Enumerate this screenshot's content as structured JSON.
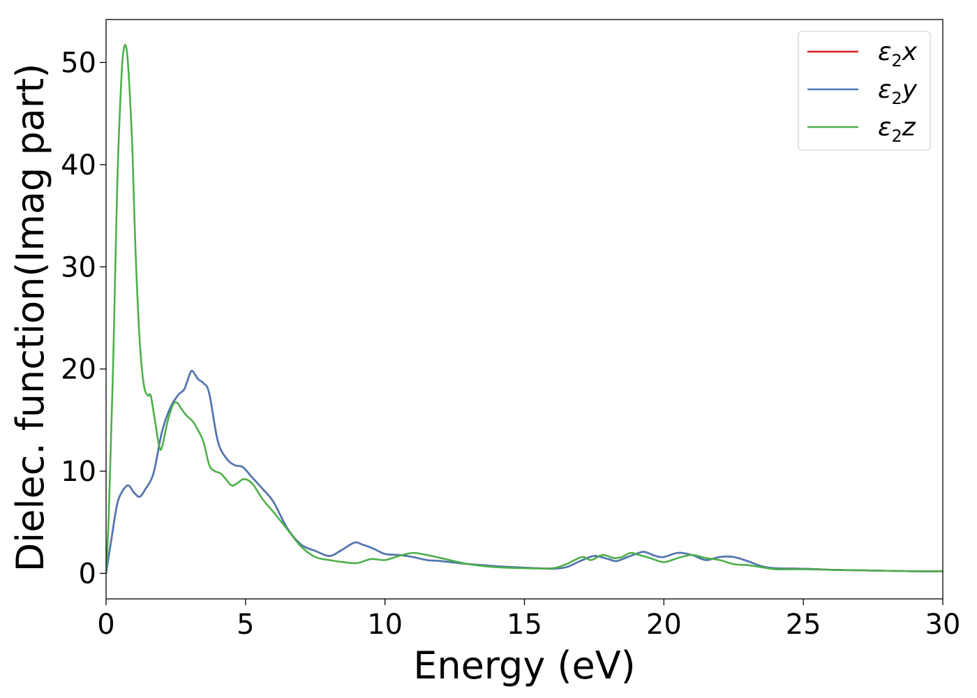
{
  "chart_data": {
    "type": "line",
    "title": "",
    "xlabel": "Energy (eV)",
    "ylabel": "Dielec. function(Imag part)",
    "xlim": [
      0,
      30
    ],
    "ylim": [
      -2.5,
      54.2
    ],
    "xticks": [
      0,
      5,
      10,
      15,
      20,
      25,
      30
    ],
    "yticks": [
      0,
      10,
      20,
      30,
      40,
      50
    ],
    "grid": false,
    "legend_position": "top-right",
    "series": [
      {
        "name": "ε₂x",
        "legend_base": "ε",
        "legend_sub": "2",
        "legend_suffix": "x",
        "color": "#e41a1c",
        "x": [
          0,
          0.2,
          0.4,
          0.6,
          0.8,
          1.0,
          1.2,
          1.4,
          1.7,
          2.0,
          2.3,
          2.6,
          2.8,
          3.0,
          3.1,
          3.3,
          3.5,
          3.7,
          4.0,
          4.3,
          4.6,
          4.9,
          5.2,
          5.6,
          6.0,
          6.5,
          7.0,
          7.5,
          8.0,
          8.4,
          8.9,
          9.2,
          9.6,
          10.0,
          10.5,
          11.0,
          11.5,
          12.0,
          13.0,
          14.0,
          15.0,
          15.5,
          16.0,
          16.5,
          17.0,
          17.5,
          18.0,
          18.3,
          18.7,
          19.0,
          19.3,
          19.7,
          20.0,
          20.5,
          21.0,
          21.5,
          22.0,
          22.5,
          23.0,
          23.5,
          24.0,
          25.0,
          26.0,
          27.0,
          28.0,
          29.0,
          30.0
        ],
        "y": [
          0,
          3.5,
          6.8,
          8.1,
          8.6,
          7.9,
          7.5,
          8.2,
          9.8,
          13.8,
          16.2,
          17.5,
          18.0,
          19.5,
          19.8,
          19.0,
          18.6,
          17.6,
          13.0,
          11.3,
          10.6,
          10.4,
          9.5,
          8.3,
          7.0,
          4.4,
          2.8,
          2.2,
          1.7,
          2.2,
          3.0,
          2.8,
          2.4,
          1.9,
          1.8,
          1.6,
          1.3,
          1.2,
          0.9,
          0.7,
          0.55,
          0.5,
          0.45,
          0.6,
          1.2,
          1.7,
          1.4,
          1.2,
          1.6,
          1.9,
          2.1,
          1.7,
          1.6,
          2.0,
          1.8,
          1.3,
          1.6,
          1.6,
          1.2,
          0.7,
          0.5,
          0.45,
          0.35,
          0.3,
          0.25,
          0.2,
          0.2
        ]
      },
      {
        "name": "ε₂y",
        "legend_base": "ε",
        "legend_sub": "2",
        "legend_suffix": "y",
        "color": "#4a7ab5",
        "x": [
          0,
          0.2,
          0.4,
          0.6,
          0.8,
          1.0,
          1.2,
          1.4,
          1.7,
          2.0,
          2.3,
          2.6,
          2.8,
          3.0,
          3.1,
          3.3,
          3.5,
          3.7,
          4.0,
          4.3,
          4.6,
          4.9,
          5.2,
          5.6,
          6.0,
          6.5,
          7.0,
          7.5,
          8.0,
          8.4,
          8.9,
          9.2,
          9.6,
          10.0,
          10.5,
          11.0,
          11.5,
          12.0,
          13.0,
          14.0,
          15.0,
          15.5,
          16.0,
          16.5,
          17.0,
          17.5,
          18.0,
          18.3,
          18.7,
          19.0,
          19.3,
          19.7,
          20.0,
          20.5,
          21.0,
          21.5,
          22.0,
          22.5,
          23.0,
          23.5,
          24.0,
          25.0,
          26.0,
          27.0,
          28.0,
          29.0,
          30.0
        ],
        "y": [
          0,
          3.5,
          6.8,
          8.1,
          8.6,
          7.9,
          7.5,
          8.2,
          9.8,
          13.8,
          16.2,
          17.5,
          18.0,
          19.5,
          19.8,
          19.0,
          18.6,
          17.6,
          13.0,
          11.3,
          10.6,
          10.4,
          9.5,
          8.3,
          7.0,
          4.4,
          2.8,
          2.2,
          1.7,
          2.2,
          3.0,
          2.8,
          2.4,
          1.9,
          1.8,
          1.6,
          1.3,
          1.2,
          0.9,
          0.7,
          0.55,
          0.5,
          0.45,
          0.6,
          1.2,
          1.7,
          1.4,
          1.2,
          1.6,
          1.9,
          2.1,
          1.7,
          1.6,
          2.0,
          1.8,
          1.3,
          1.6,
          1.6,
          1.2,
          0.7,
          0.5,
          0.45,
          0.35,
          0.3,
          0.25,
          0.2,
          0.2
        ]
      },
      {
        "name": "ε₂z",
        "legend_base": "ε",
        "legend_sub": "2",
        "legend_suffix": "z",
        "color": "#4daf4a",
        "x": [
          0,
          0.1,
          0.25,
          0.4,
          0.55,
          0.65,
          0.75,
          0.85,
          0.95,
          1.05,
          1.2,
          1.35,
          1.5,
          1.6,
          1.75,
          1.9,
          2.0,
          2.2,
          2.4,
          2.55,
          2.7,
          2.9,
          3.1,
          3.3,
          3.5,
          3.7,
          3.9,
          4.1,
          4.3,
          4.5,
          4.7,
          4.9,
          5.1,
          5.3,
          5.6,
          6.0,
          6.5,
          7.0,
          7.5,
          8.0,
          8.5,
          9.0,
          9.5,
          10.0,
          10.5,
          11.0,
          11.5,
          12.0,
          13.0,
          14.0,
          15.0,
          16.0,
          16.5,
          16.8,
          17.1,
          17.4,
          17.8,
          18.2,
          18.5,
          18.8,
          19.1,
          19.5,
          20.0,
          20.5,
          21.0,
          21.5,
          22.0,
          22.5,
          23.0,
          23.5,
          24.0,
          24.5,
          25.0,
          26.0,
          27.0,
          28.0,
          29.0,
          30.0
        ],
        "y": [
          0,
          6,
          20,
          38,
          48.5,
          51.5,
          51.0,
          47,
          41,
          32,
          23,
          18.5,
          17.4,
          17.4,
          15.0,
          12.5,
          12.3,
          14.8,
          16.5,
          16.7,
          16.1,
          15.4,
          14.9,
          14.0,
          12.8,
          10.6,
          10.0,
          9.8,
          9.2,
          8.6,
          8.8,
          9.2,
          9.1,
          8.6,
          7.3,
          6.0,
          4.3,
          2.6,
          1.6,
          1.3,
          1.1,
          1.0,
          1.4,
          1.3,
          1.7,
          2.0,
          1.8,
          1.5,
          0.9,
          0.6,
          0.5,
          0.5,
          0.9,
          1.3,
          1.6,
          1.3,
          1.8,
          1.5,
          1.6,
          2.0,
          1.8,
          1.5,
          1.1,
          1.5,
          1.8,
          1.5,
          1.3,
          0.9,
          0.8,
          0.6,
          0.4,
          0.4,
          0.4,
          0.35,
          0.3,
          0.25,
          0.2,
          0.2
        ]
      }
    ]
  }
}
